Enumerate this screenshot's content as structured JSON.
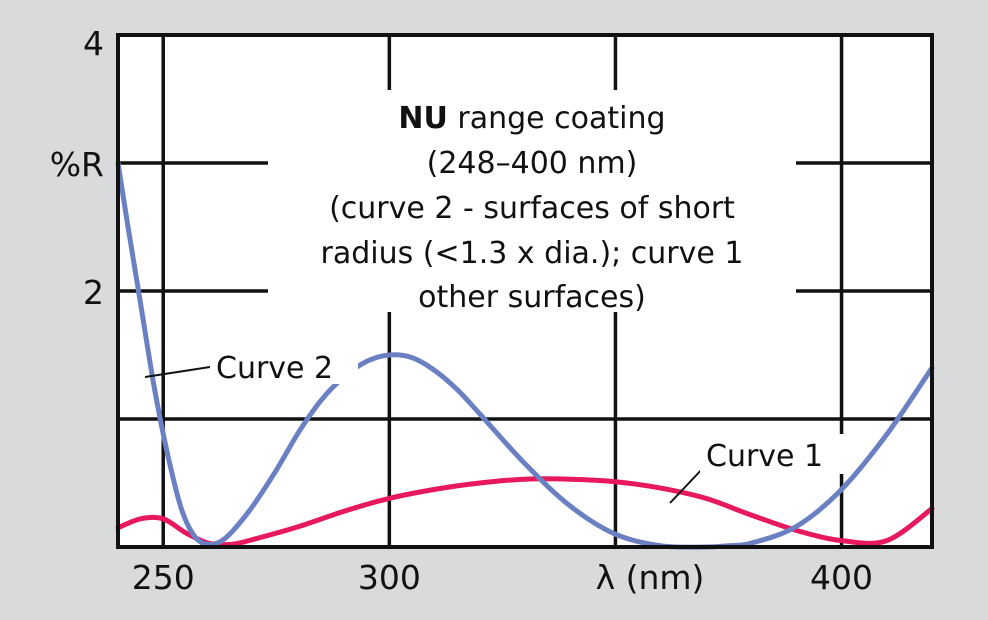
{
  "chart_data": {
    "type": "line",
    "title": "",
    "xlabel": "λ (nm)",
    "ylabel": "%R",
    "xlim": [
      240,
      420
    ],
    "ylim": [
      0,
      4
    ],
    "x_ticks": [
      {
        "value": 250,
        "label": "250"
      },
      {
        "value": 300,
        "label": "300"
      },
      {
        "value": 400,
        "label": "400"
      }
    ],
    "y_ticks": [
      {
        "value": 2,
        "label": "2"
      },
      {
        "value": 4,
        "label": "4"
      }
    ],
    "grid": true,
    "annotation": {
      "bold": "NU",
      "lines": [
        " range coating",
        "(248–400 nm)",
        "(curve 2 - surfaces of short",
        "radius (<1.3 x dia.); curve 1",
        "other surfaces)"
      ]
    },
    "series": [
      {
        "name": "Curve 1",
        "color": "#e8185e",
        "x": [
          240,
          245,
          250,
          255,
          260,
          265,
          270,
          280,
          290,
          300,
          310,
          320,
          330,
          340,
          350,
          360,
          370,
          380,
          390,
          400,
          410,
          420
        ],
        "y": [
          0.15,
          0.22,
          0.22,
          0.11,
          0.03,
          0.02,
          0.06,
          0.16,
          0.28,
          0.38,
          0.45,
          0.5,
          0.53,
          0.53,
          0.51,
          0.46,
          0.38,
          0.25,
          0.13,
          0.05,
          0.05,
          0.3
        ]
      },
      {
        "name": "Curve 2",
        "color": "#6b80c2",
        "x": [
          240,
          242,
          245,
          248,
          251,
          254,
          257,
          260,
          263,
          266,
          270,
          275,
          280,
          285,
          290,
          295,
          300,
          305,
          310,
          315,
          320,
          330,
          340,
          350,
          360,
          370,
          375,
          380,
          390,
          400,
          410,
          420
        ],
        "y": [
          3.0,
          2.55,
          1.9,
          1.25,
          0.72,
          0.3,
          0.08,
          0.02,
          0.05,
          0.15,
          0.33,
          0.6,
          0.9,
          1.15,
          1.33,
          1.45,
          1.5,
          1.48,
          1.38,
          1.23,
          1.04,
          0.65,
          0.32,
          0.1,
          0.01,
          0.0,
          0.01,
          0.03,
          0.16,
          0.45,
          0.88,
          1.4
        ]
      }
    ],
    "labels": [
      {
        "series": "Curve 2",
        "text": "Curve 2"
      },
      {
        "series": "Curve 1",
        "text": "Curve 1"
      }
    ]
  }
}
